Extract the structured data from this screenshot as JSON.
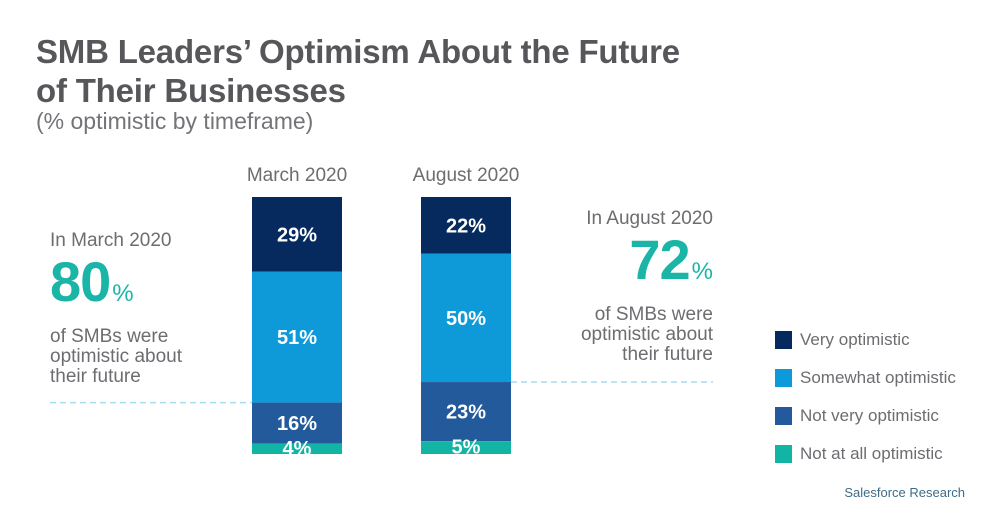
{
  "title_line1": "SMB Leaders’ Optimism About the Future",
  "title_line2": "of Their Businesses",
  "subtitle": "(% optimistic by timeframe)",
  "annotations": {
    "left": {
      "lead": "In March 2020",
      "value": "80",
      "unit": "%",
      "desc_lines": [
        "of SMBs were",
        "optimistic about",
        "their future"
      ]
    },
    "right": {
      "lead": "In August 2020",
      "value": "72",
      "unit": "%",
      "desc_lines": [
        "of SMBs were",
        "optimistic about",
        "their future"
      ]
    }
  },
  "source": "Salesforce Research",
  "colors": {
    "very": "#062a5e",
    "somewhat": "#0e9ad8",
    "not_very": "#225a9c",
    "not_at_all": "#12b4a4",
    "dashed": "#a6dcf2",
    "accent_teal": "#1ab5a6"
  },
  "chart_data": {
    "type": "bar",
    "stacked": true,
    "orientation": "vertical",
    "title": "SMB Leaders’ Optimism About the Future of Their Businesses",
    "subtitle": "(% optimistic by timeframe)",
    "categories": [
      "March 2020",
      "August 2020"
    ],
    "series": [
      {
        "name": "Very optimistic",
        "values": [
          29,
          22
        ],
        "color": "#062a5e"
      },
      {
        "name": "Somewhat optimistic",
        "values": [
          51,
          50
        ],
        "color": "#0e9ad8"
      },
      {
        "name": "Not very optimistic",
        "values": [
          16,
          23
        ],
        "color": "#225a9c"
      },
      {
        "name": "Not at all optimistic",
        "values": [
          4,
          5
        ],
        "color": "#12b4a4"
      }
    ],
    "data_labels": [
      [
        "29%",
        "51%",
        "16%",
        "4%"
      ],
      [
        "22%",
        "50%",
        "23%",
        "5%"
      ]
    ],
    "ylim": [
      0,
      100
    ],
    "xlabel": "",
    "ylabel": "",
    "grid": false,
    "legend_position": "right",
    "annotations": [
      {
        "category": "March 2020",
        "text": "In March 2020 80% of SMBs were optimistic about their future"
      },
      {
        "category": "August 2020",
        "text": "In August 2020 72% of SMBs were optimistic about their future"
      }
    ]
  }
}
